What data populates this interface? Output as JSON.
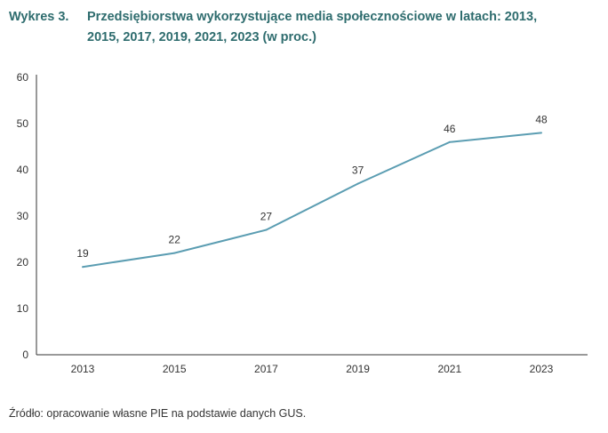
{
  "title": {
    "prefix": "Wykres 3.",
    "line1": "Przedsiębiorstwa wykorzystujące media społecznościowe w latach: 2013,",
    "line2": "2015, 2017, 2019, 2021, 2023 (w proc.)"
  },
  "source": "Źródło: opracowanie własne PIE na podstawie danych GUS.",
  "colors": {
    "line": "#5b9db2",
    "title": "#2e6c6e",
    "text": "#333333",
    "axis": "#333333"
  },
  "chart_data": {
    "type": "line",
    "title": "Przedsiębiorstwa wykorzystujące media społecznościowe w latach: 2013, 2015, 2017, 2019, 2021, 2023 (w proc.)",
    "xlabel": "",
    "ylabel": "",
    "categories": [
      "2013",
      "2015",
      "2017",
      "2019",
      "2021",
      "2023"
    ],
    "values": [
      19,
      22,
      27,
      37,
      46,
      48
    ],
    "data_labels": [
      "19",
      "22",
      "27",
      "37",
      "46",
      "48"
    ],
    "ylim": [
      0,
      60
    ],
    "yticks": [
      "0",
      "10",
      "20",
      "30",
      "40",
      "50",
      "60"
    ],
    "grid": false,
    "legend": "none"
  }
}
